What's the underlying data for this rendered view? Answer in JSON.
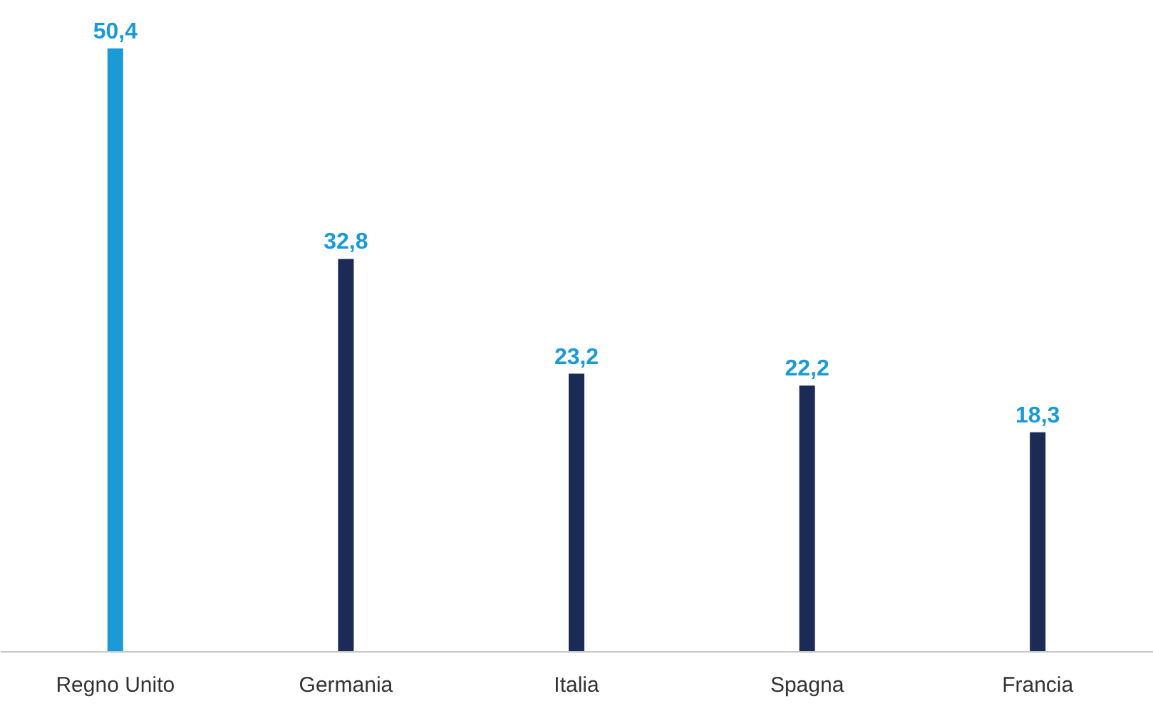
{
  "chart_data": {
    "type": "bar",
    "categories": [
      "Regno Unito",
      "Germania",
      "Italia",
      "Spagna",
      "Francia"
    ],
    "values": [
      50.4,
      32.8,
      23.2,
      22.2,
      18.3
    ],
    "colors": [
      "#1a9ad6",
      "#1c2b55",
      "#1c2b55",
      "#1c2b55",
      "#1c2b55"
    ],
    "value_labels": [
      "50,4",
      "32,8",
      "23,2",
      "22,2",
      "18,3"
    ],
    "grid": false
  }
}
